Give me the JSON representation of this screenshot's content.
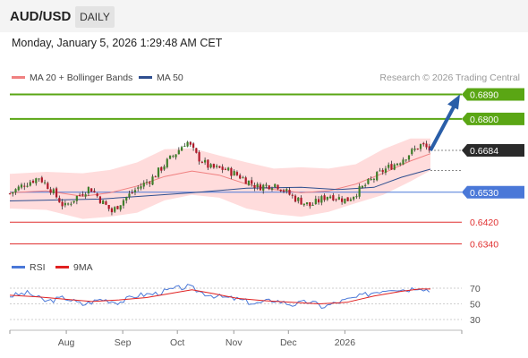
{
  "header": {
    "symbol": "AUD/USD",
    "timeframe": "DAILY"
  },
  "datetime": "Monday, January 5, 2026 1:29:48 AM CET",
  "price_legend": [
    {
      "label": "MA 20 + Bollinger Bands",
      "color": "#f08080"
    },
    {
      "label": "MA 50",
      "color": "#2f4f8f"
    }
  ],
  "copyright": "Research © 2026 Trading Central",
  "rsi_legend": [
    {
      "label": "RSI",
      "color": "#4a78d8"
    },
    {
      "label": "9MA",
      "color": "#e02020"
    }
  ],
  "colors": {
    "resistance": "#5aa614",
    "support": "#e03030",
    "pivot": "#4a78d8",
    "last_price": "#2a2a2a",
    "arrow": "#2a5ea8",
    "candle_up": "#3f7f2a",
    "candle_down": "#b01828",
    "band_fill": "#ffdcdc"
  },
  "levels": [
    {
      "price": 0.689,
      "label": "0.6890",
      "type": "resistance"
    },
    {
      "price": 0.68,
      "label": "0.6800",
      "type": "resistance"
    },
    {
      "price": 0.6684,
      "label": "0.6684",
      "type": "last"
    },
    {
      "price": 0.653,
      "label": "0.6530",
      "type": "pivot"
    },
    {
      "price": 0.642,
      "label": "0.6420",
      "type": "support"
    },
    {
      "price": 0.634,
      "label": "0.6340",
      "type": "support"
    }
  ],
  "rsi_ticks": [
    "70",
    "50",
    "30"
  ],
  "x_labels": [
    "Aug",
    "Sep",
    "Oct",
    "Nov",
    "Dec",
    "2026"
  ],
  "chart_data": {
    "type": "candlestick",
    "x_range": [
      "2025-07-01",
      "2026-01-05"
    ],
    "y_range": [
      0.63,
      0.691
    ],
    "ma20_bollinger": {
      "middle": [
        [
          0,
          0.6528
        ],
        [
          20,
          0.6535
        ],
        [
          40,
          0.6515
        ],
        [
          55,
          0.6528
        ],
        [
          70,
          0.6553
        ],
        [
          85,
          0.6588
        ],
        [
          100,
          0.6608
        ],
        [
          115,
          0.6593
        ],
        [
          130,
          0.656
        ],
        [
          145,
          0.654
        ],
        [
          160,
          0.6528
        ],
        [
          175,
          0.6535
        ],
        [
          190,
          0.656
        ],
        [
          205,
          0.66
        ],
        [
          220,
          0.6645
        ],
        [
          231,
          0.6672
        ]
      ],
      "upper": [
        [
          0,
          0.6598
        ],
        [
          20,
          0.6605
        ],
        [
          40,
          0.66
        ],
        [
          55,
          0.6612
        ],
        [
          70,
          0.664
        ],
        [
          85,
          0.6688
        ],
        [
          100,
          0.6692
        ],
        [
          115,
          0.6665
        ],
        [
          130,
          0.664
        ],
        [
          145,
          0.6617
        ],
        [
          160,
          0.6622
        ],
        [
          175,
          0.6617
        ],
        [
          190,
          0.6633
        ],
        [
          205,
          0.6688
        ],
        [
          220,
          0.6728
        ],
        [
          231,
          0.6728
        ]
      ],
      "lower": [
        [
          0,
          0.647
        ],
        [
          20,
          0.6465
        ],
        [
          40,
          0.6432
        ],
        [
          55,
          0.644
        ],
        [
          70,
          0.6455
        ],
        [
          85,
          0.65
        ],
        [
          100,
          0.652
        ],
        [
          115,
          0.651
        ],
        [
          130,
          0.647
        ],
        [
          145,
          0.645
        ],
        [
          160,
          0.644
        ],
        [
          175,
          0.6458
        ],
        [
          190,
          0.649
        ],
        [
          205,
          0.652
        ],
        [
          220,
          0.657
        ],
        [
          231,
          0.661
        ]
      ]
    },
    "ma50": [
      [
        0,
        0.6498
      ],
      [
        50,
        0.6505
      ],
      [
        100,
        0.6528
      ],
      [
        130,
        0.6545
      ],
      [
        160,
        0.6548
      ],
      [
        180,
        0.654
      ],
      [
        200,
        0.6548
      ],
      [
        215,
        0.6585
      ],
      [
        231,
        0.6615
      ]
    ],
    "candle_path": [
      [
        0,
        0.6525
      ],
      [
        8,
        0.656
      ],
      [
        16,
        0.6585
      ],
      [
        22,
        0.6545
      ],
      [
        30,
        0.6475
      ],
      [
        36,
        0.651
      ],
      [
        44,
        0.6548
      ],
      [
        50,
        0.65
      ],
      [
        56,
        0.6458
      ],
      [
        62,
        0.65
      ],
      [
        70,
        0.6545
      ],
      [
        78,
        0.658
      ],
      [
        86,
        0.664
      ],
      [
        92,
        0.668
      ],
      [
        97,
        0.672
      ],
      [
        103,
        0.666
      ],
      [
        110,
        0.662
      ],
      [
        118,
        0.6615
      ],
      [
        126,
        0.659
      ],
      [
        136,
        0.655
      ],
      [
        146,
        0.656
      ],
      [
        156,
        0.651
      ],
      [
        165,
        0.648
      ],
      [
        175,
        0.652
      ],
      [
        185,
        0.65
      ],
      [
        195,
        0.6555
      ],
      [
        205,
        0.661
      ],
      [
        213,
        0.664
      ],
      [
        220,
        0.6675
      ],
      [
        226,
        0.6705
      ],
      [
        231,
        0.6684
      ]
    ],
    "forecast_arrow": {
      "from": 0.6684,
      "to": 0.689
    },
    "rsi": [
      [
        0,
        60
      ],
      [
        10,
        64
      ],
      [
        20,
        53
      ],
      [
        30,
        58
      ],
      [
        40,
        49
      ],
      [
        50,
        56
      ],
      [
        60,
        52
      ],
      [
        70,
        61
      ],
      [
        80,
        63
      ],
      [
        90,
        69
      ],
      [
        98,
        72
      ],
      [
        106,
        64
      ],
      [
        115,
        59
      ],
      [
        125,
        56
      ],
      [
        135,
        50
      ],
      [
        145,
        55
      ],
      [
        155,
        49
      ],
      [
        165,
        53
      ],
      [
        172,
        46
      ],
      [
        180,
        52
      ],
      [
        190,
        58
      ],
      [
        200,
        65
      ],
      [
        210,
        70
      ],
      [
        218,
        68
      ],
      [
        225,
        72
      ],
      [
        231,
        66
      ]
    ],
    "rsi_9ma": [
      [
        0,
        61
      ],
      [
        15,
        59
      ],
      [
        30,
        56
      ],
      [
        45,
        53
      ],
      [
        60,
        55
      ],
      [
        75,
        58
      ],
      [
        90,
        64
      ],
      [
        100,
        68
      ],
      [
        112,
        63
      ],
      [
        125,
        57
      ],
      [
        140,
        54
      ],
      [
        155,
        52
      ],
      [
        170,
        50
      ],
      [
        185,
        52
      ],
      [
        200,
        60
      ],
      [
        215,
        66
      ],
      [
        225,
        69
      ],
      [
        231,
        69
      ]
    ],
    "rsi_range": [
      0,
      100
    ]
  }
}
